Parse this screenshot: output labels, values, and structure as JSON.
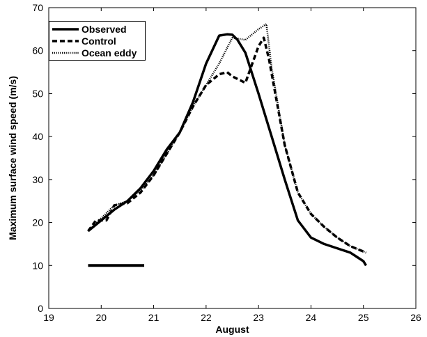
{
  "chart_data": {
    "type": "line",
    "xlabel": "August",
    "ylabel": "Maximum surface wind speed (m/s)",
    "xlim": [
      19,
      26
    ],
    "ylim": [
      0,
      70
    ],
    "xticks": [
      19,
      20,
      21,
      22,
      23,
      24,
      25,
      26
    ],
    "yticks": [
      0,
      10,
      20,
      30,
      40,
      50,
      60,
      70
    ],
    "grid": false,
    "legend_position": "top-left",
    "series": [
      {
        "name": "Observed",
        "style": "solid",
        "color": "#000000",
        "x": [
          19.75,
          20.0,
          20.25,
          20.5,
          20.75,
          21.0,
          21.25,
          21.5,
          21.75,
          22.0,
          22.25,
          22.4,
          22.5,
          22.6,
          22.75,
          23.0,
          23.25,
          23.5,
          23.75,
          24.0,
          24.25,
          24.5,
          24.75,
          25.0,
          25.05
        ],
        "y": [
          18,
          20.5,
          23,
          25,
          28,
          32,
          37,
          41,
          48,
          57,
          63.5,
          63.8,
          63.7,
          62.5,
          59.5,
          50,
          40,
          30,
          20.5,
          16.5,
          15,
          14,
          13,
          11,
          10
        ]
      },
      {
        "name": "Control",
        "style": "dashed",
        "color": "#000000",
        "x": [
          19.75,
          19.9,
          20.1,
          20.25,
          20.5,
          20.75,
          21.0,
          21.25,
          21.5,
          21.75,
          22.0,
          22.25,
          22.4,
          22.5,
          22.75,
          23.0,
          23.1,
          23.2,
          23.5,
          23.75,
          24.0,
          24.25,
          24.5,
          24.75,
          25.05
        ],
        "y": [
          18,
          20.5,
          20.5,
          24,
          24.5,
          27,
          31,
          36,
          41,
          47,
          52,
          54.5,
          55,
          54,
          52.5,
          61,
          63,
          58,
          38,
          27,
          22,
          19,
          16.5,
          14.5,
          13
        ]
      },
      {
        "name": "Ocean eddy",
        "style": "dotted",
        "color": "#000000",
        "x": [
          19.75,
          20.0,
          20.25,
          20.5,
          20.75,
          21.0,
          21.25,
          21.5,
          21.75,
          22.0,
          22.25,
          22.5,
          22.75,
          23.0,
          23.15,
          23.25,
          23.5,
          23.75,
          24.0,
          24.25,
          24.5,
          24.75,
          25.05
        ],
        "y": [
          18,
          21,
          24,
          25,
          27.5,
          31,
          36,
          41,
          47,
          52,
          57,
          63,
          62.5,
          65,
          66.2,
          56,
          38,
          27,
          22,
          19,
          16.5,
          14.5,
          13
        ]
      }
    ],
    "annotations": [
      {
        "type": "bar",
        "x": [
          19.75,
          20.82
        ],
        "y": 10
      }
    ]
  }
}
